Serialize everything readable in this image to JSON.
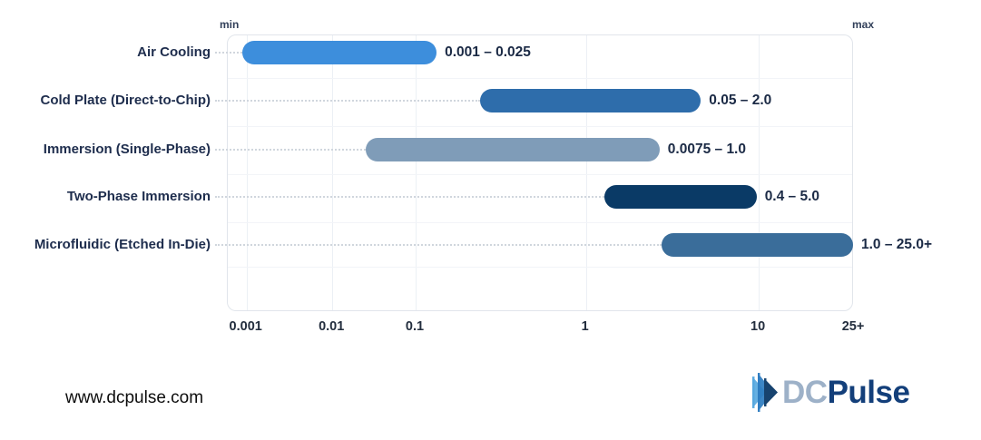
{
  "footer": {
    "url": "www.dcpulse.com",
    "logo_dc": "DC",
    "logo_pulse": "Pulse"
  },
  "chart_data": {
    "type": "bar",
    "variant": "horizontal-range-pills",
    "title": "",
    "xlabel": "",
    "ylabel": "",
    "axis": {
      "scale": "log-stylized",
      "min_label": "min",
      "max_label": "max",
      "ticks": [
        "0.001",
        "0.01",
        "0.1",
        "1",
        "10",
        "25+"
      ],
      "tick_pct": [
        3.0,
        16.7,
        30.0,
        57.2,
        84.8,
        100.0
      ],
      "grid": true
    },
    "categories": [
      "Air Cooling",
      "Cold Plate (Direct-to-Chip)",
      "Immersion (Single-Phase)",
      "Two-Phase Immersion",
      "Microfluidic (Etched In-Die)"
    ],
    "rows": [
      {
        "label": "Air Cooling",
        "min": 0.001,
        "max": 0.025,
        "max_open": false,
        "range_label": "0.001 – 0.025",
        "color": "#3d8edc",
        "bar_pct": [
          2.5,
          33.5
        ]
      },
      {
        "label": "Cold Plate (Direct-to-Chip)",
        "min": 0.05,
        "max": 2.0,
        "max_open": false,
        "range_label": "0.05 – 2.0",
        "color": "#2e6dab",
        "bar_pct": [
          40.4,
          75.7
        ]
      },
      {
        "label": "Immersion (Single-Phase)",
        "min": 0.0075,
        "max": 1.0,
        "max_open": false,
        "range_label": "0.0075 – 1.0",
        "color": "#7f9cb8",
        "bar_pct": [
          22.2,
          69.1
        ]
      },
      {
        "label": "Two-Phase Immersion",
        "min": 0.4,
        "max": 5.0,
        "max_open": false,
        "range_label": "0.4 – 5.0",
        "color": "#0a3a66",
        "bar_pct": [
          60.3,
          84.6
        ]
      },
      {
        "label": "Microfluidic (Etched In-Die)",
        "min": 1.0,
        "max": 25.0,
        "max_open": true,
        "range_label": "1.0 – 25.0+",
        "color": "#3a6d9a",
        "bar_pct": [
          69.4,
          100.0
        ]
      }
    ]
  }
}
